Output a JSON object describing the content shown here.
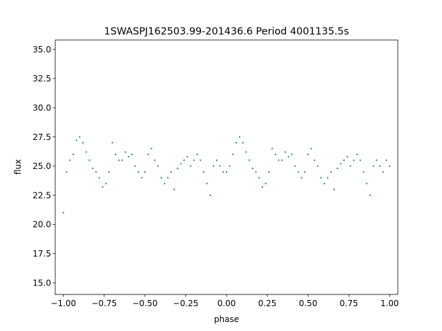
{
  "chart_data": {
    "type": "scatter",
    "title": "1SWASPJ162503.99-201436.6 Period 4001135.5s",
    "xlabel": "phase",
    "ylabel": "flux",
    "xlim": [
      -1.05,
      1.05
    ],
    "ylim": [
      14.0,
      35.8
    ],
    "xticks": [
      -1.0,
      -0.75,
      -0.5,
      -0.25,
      0.0,
      0.25,
      0.5,
      0.75,
      1.0
    ],
    "xtick_labels": [
      "−1.00",
      "−0.75",
      "−0.50",
      "−0.25",
      "0.00",
      "0.25",
      "0.50",
      "0.75",
      "1.00"
    ],
    "yticks": [
      15.0,
      17.5,
      20.0,
      22.5,
      25.0,
      27.5,
      30.0,
      32.5,
      35.0
    ],
    "ytick_labels": [
      "15.0",
      "17.5",
      "20.0",
      "22.5",
      "25.0",
      "27.5",
      "30.0",
      "32.5",
      "35.0"
    ],
    "grid": false,
    "marker_color": "#1f77b4",
    "series": [
      {
        "x": [
          -1.0,
          -0.98,
          -0.96,
          -0.94,
          -0.92,
          -0.9,
          -0.88,
          -0.86,
          -0.84,
          -0.82,
          -0.8,
          -0.78,
          -0.76,
          -0.74,
          -0.72,
          -0.7,
          -0.68,
          -0.66,
          -0.64,
          -0.62,
          -0.6,
          -0.58,
          -0.56,
          -0.54,
          -0.52,
          -0.5,
          -0.48,
          -0.46,
          -0.44,
          -0.42,
          -0.4,
          -0.38,
          -0.36,
          -0.34,
          -0.32,
          -0.3,
          -0.28,
          -0.26,
          -0.24,
          -0.22,
          -0.2,
          -0.18,
          -0.16,
          -0.14,
          -0.12,
          -0.1,
          -0.08,
          -0.06,
          -0.04,
          -0.02,
          0.0,
          0.02,
          0.04,
          0.06,
          0.08,
          0.1,
          0.12,
          0.14,
          0.16,
          0.18,
          0.2,
          0.22,
          0.24,
          0.26,
          0.28,
          0.3,
          0.32,
          0.34,
          0.36,
          0.38,
          0.4,
          0.42,
          0.44,
          0.46,
          0.48,
          0.5,
          0.52,
          0.54,
          0.56,
          0.58,
          0.6,
          0.62,
          0.64,
          0.66,
          0.68,
          0.7,
          0.72,
          0.74,
          0.76,
          0.78,
          0.8,
          0.82,
          0.84,
          0.86,
          0.88,
          0.9,
          0.92,
          0.94,
          0.96,
          0.98,
          1.0
        ],
        "y": [
          21.0,
          24.5,
          25.5,
          26.0,
          27.2,
          27.5,
          27.0,
          26.2,
          25.5,
          24.8,
          24.5,
          24.0,
          23.2,
          23.5,
          24.5,
          27.0,
          26.0,
          25.5,
          25.5,
          26.2,
          25.8,
          26.0,
          25.0,
          24.5,
          24.0,
          24.5,
          26.0,
          26.5,
          25.5,
          25.0,
          24.0,
          23.5,
          24.0,
          24.5,
          23.0,
          24.8,
          25.2,
          25.5,
          25.8,
          25.0,
          25.5,
          26.0,
          25.5,
          24.5,
          23.5,
          22.5,
          25.0,
          25.5,
          25.0,
          24.5,
          24.5,
          25.0,
          26.0,
          27.0,
          27.5,
          27.0,
          26.2,
          25.5,
          24.8,
          24.5,
          24.0,
          23.2,
          23.5,
          24.5,
          26.5,
          26.0,
          25.5,
          25.5,
          26.2,
          25.8,
          26.0,
          25.0,
          24.5,
          24.0,
          24.5,
          26.0,
          26.5,
          25.5,
          25.0,
          24.0,
          23.5,
          24.0,
          24.5,
          23.0,
          24.8,
          25.2,
          25.5,
          25.8,
          25.0,
          25.5,
          26.0,
          25.5,
          24.5,
          23.5,
          22.5,
          25.0,
          25.5,
          25.0,
          24.5,
          25.5,
          25.0
        ]
      }
    ]
  }
}
